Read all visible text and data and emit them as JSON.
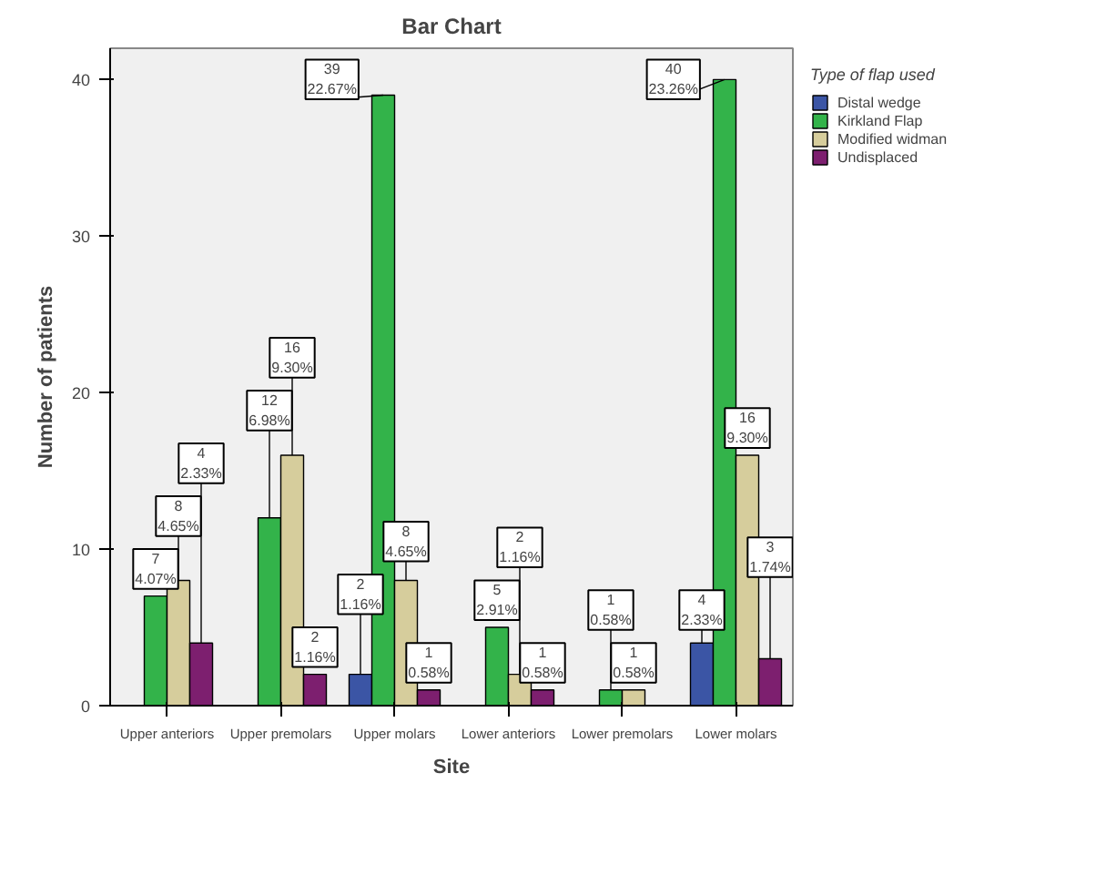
{
  "chart_data": {
    "type": "bar",
    "title": "Bar Chart",
    "xlabel": "Site",
    "ylabel": "Number of patients",
    "legend_title": "Type of flap used",
    "categories": [
      "Upper anteriors",
      "Upper premolars",
      "Upper molars",
      "Lower anteriors",
      "Lower premolars",
      "Lower molars"
    ],
    "series": [
      {
        "name": "Distal wedge",
        "color": "#3b55a5",
        "values": [
          null,
          null,
          2,
          null,
          null,
          4
        ],
        "value_labels": [
          null,
          null,
          "2\n1.16%",
          null,
          null,
          "4\n2.33%"
        ]
      },
      {
        "name": "Kirkland Flap",
        "color": "#33b34a",
        "values": [
          7,
          12,
          39,
          5,
          1,
          40
        ],
        "value_labels": [
          "7\n4.07%",
          "12\n6.98%",
          "39\n22.67%",
          "5\n2.91%",
          "1\n0.58%",
          "40\n23.26%"
        ]
      },
      {
        "name": "Modified widman",
        "color": "#d6cd9c",
        "values": [
          8,
          16,
          8,
          2,
          1,
          16
        ],
        "value_labels": [
          "8\n4.65%",
          "16\n9.30%",
          "8\n4.65%",
          "2\n1.16%",
          "1\n0.58%",
          "16\n9.30%"
        ]
      },
      {
        "name": "Undisplaced",
        "color": "#7d1f6f",
        "values": [
          4,
          2,
          1,
          1,
          null,
          3
        ],
        "value_labels": [
          "4\n2.33%",
          "2\n1.16%",
          "1\n0.58%",
          "1\n0.58%",
          null,
          "3\n1.74%"
        ]
      }
    ],
    "ylim": [
      0,
      42
    ],
    "yticks": [
      0,
      10,
      20,
      30,
      40
    ],
    "grid": false,
    "legend": "top right"
  }
}
